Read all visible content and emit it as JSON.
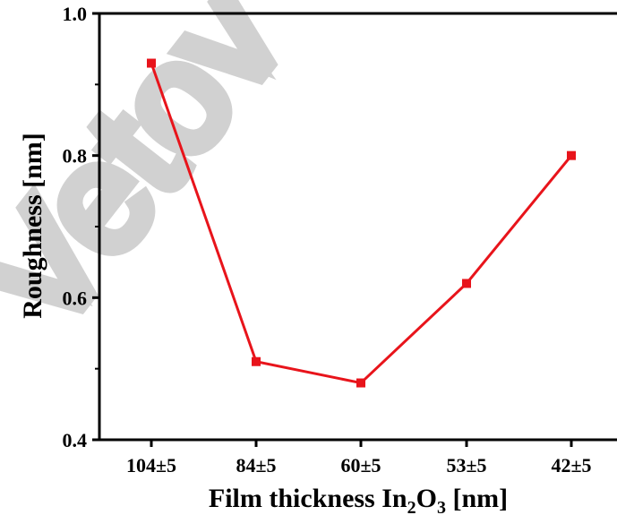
{
  "chart_data": {
    "type": "line",
    "categories": [
      "104±5",
      "84±5",
      "60±5",
      "53±5",
      "42±5"
    ],
    "series": [
      {
        "values": [
          0.93,
          0.51,
          0.48,
          0.62,
          0.8
        ],
        "color": "#e8141b"
      }
    ],
    "xlabel_parts": [
      "Film thickness In",
      "2",
      "O",
      "3",
      " [nm]"
    ],
    "ylabel": "Roughness [nm]",
    "ylim": [
      0.4,
      1.0
    ],
    "yticks": [
      "0.4",
      "0.6",
      "0.8",
      "1.0"
    ],
    "grid": false,
    "legend": "none"
  },
  "watermark": {
    "text": "Vetov",
    "color": "#c9c9c9"
  }
}
